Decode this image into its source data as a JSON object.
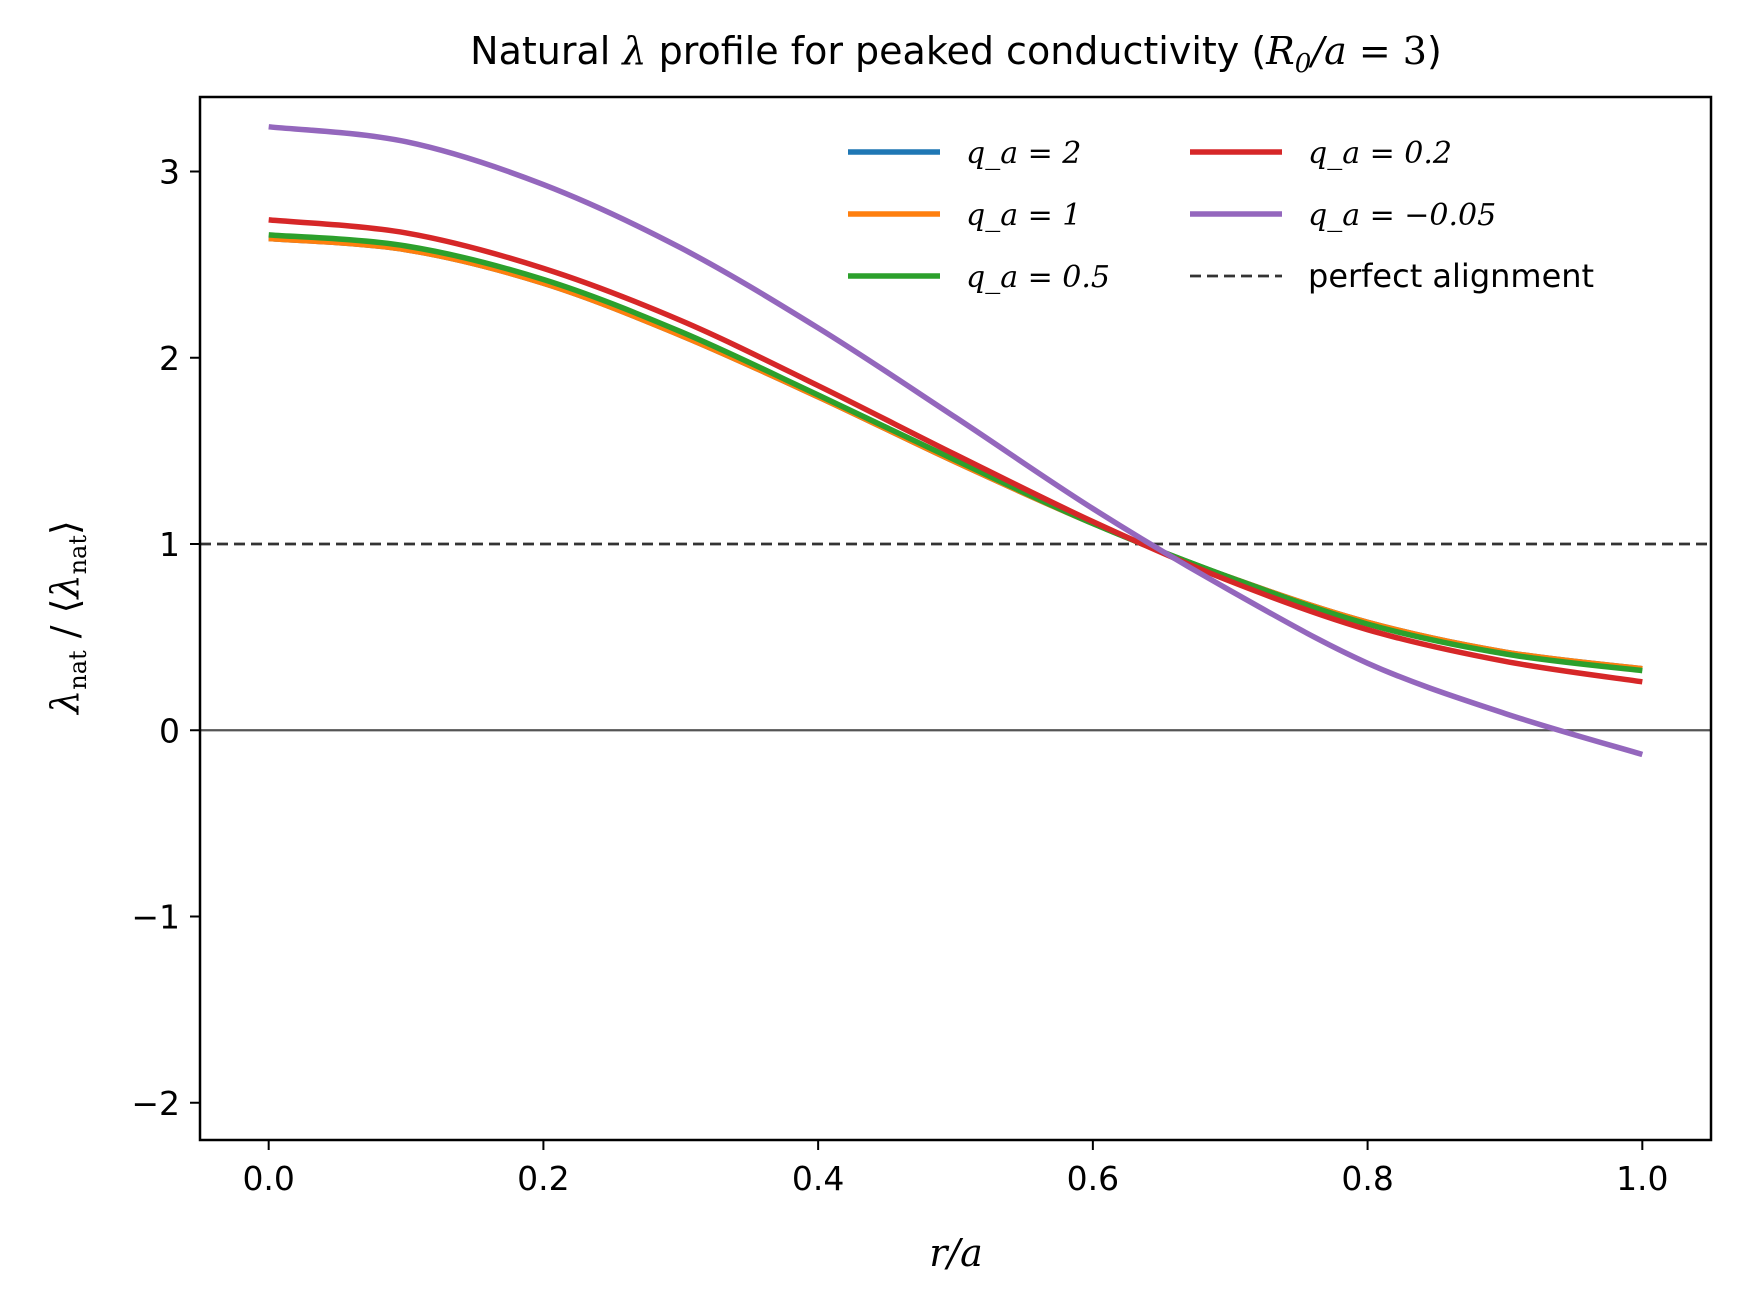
{
  "chart_data": {
    "type": "line",
    "title": "Natural λ profile for peaked conductivity (R₀/a = 3)",
    "xlabel": "r/a",
    "ylabel": "λ_nat / ⟨λ_nat⟩",
    "xlim": [
      -0.05,
      1.05
    ],
    "ylim": [
      -2.2,
      3.4
    ],
    "xticks": [
      "0.0",
      "0.2",
      "0.4",
      "0.6",
      "0.8",
      "1.0"
    ],
    "yticks": [
      "−2",
      "−1",
      "0",
      "1",
      "2",
      "3"
    ],
    "grid": false,
    "legend_position": "top-right",
    "x": [
      0.0,
      0.1,
      0.2,
      0.3,
      0.4,
      0.5,
      0.6,
      0.7,
      0.8,
      0.9,
      1.0
    ],
    "series": [
      {
        "name": "q_a = 2",
        "color": "#1f77b4",
        "values": [
          2.64,
          2.58,
          2.4,
          2.12,
          1.79,
          1.44,
          1.11,
          0.82,
          0.58,
          0.42,
          0.33
        ]
      },
      {
        "name": "q_a = 1",
        "color": "#ff7f0e",
        "values": [
          2.64,
          2.58,
          2.4,
          2.12,
          1.79,
          1.44,
          1.11,
          0.82,
          0.58,
          0.42,
          0.33
        ]
      },
      {
        "name": "q_a = 0.5",
        "color": "#2ca02c",
        "values": [
          2.66,
          2.6,
          2.42,
          2.14,
          1.8,
          1.45,
          1.11,
          0.82,
          0.57,
          0.41,
          0.32
        ]
      },
      {
        "name": "q_a = 0.2",
        "color": "#d62728",
        "values": [
          2.74,
          2.67,
          2.48,
          2.2,
          1.85,
          1.48,
          1.12,
          0.8,
          0.54,
          0.37,
          0.26
        ]
      },
      {
        "name": "q_a = −0.05",
        "color": "#9467bd",
        "values": [
          3.24,
          3.16,
          2.93,
          2.59,
          2.16,
          1.68,
          1.19,
          0.75,
          0.36,
          0.09,
          -0.13
        ]
      }
    ],
    "reference_lines": [
      {
        "name": "perfect alignment",
        "y": 1,
        "style": "dashed",
        "color": "#333333"
      },
      {
        "name": "",
        "y": 0,
        "style": "solid",
        "color": "#555555"
      }
    ]
  }
}
